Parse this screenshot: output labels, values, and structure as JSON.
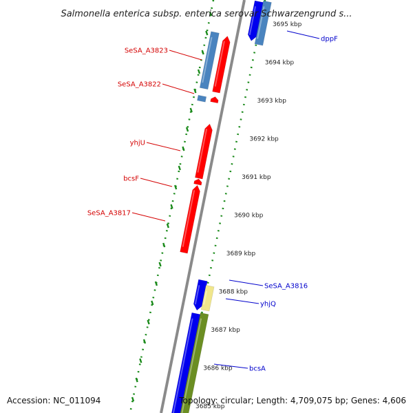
{
  "title": "Salmonella enterica subsp. enterica serovar Schwarzengrund s...",
  "footer": {
    "accession": "Accession: NC_011094",
    "topology": "Topology: circular; Length: 4,709,075 bp; Genes: 4,606"
  },
  "colors": {
    "forward_label": "#d40000",
    "reverse_label": "#0000cc",
    "backbone": "#8a8a8a",
    "dots": "#1a8a1a"
  },
  "chart_data": {
    "type": "genome-map",
    "ticks": [
      {
        "kbp": 3695,
        "label": "3695 kbp"
      },
      {
        "kbp": 3694,
        "label": "3694 kbp"
      },
      {
        "kbp": 3693,
        "label": "3693 kbp"
      },
      {
        "kbp": 3692,
        "label": "3692 kbp"
      },
      {
        "kbp": 3691,
        "label": "3691 kbp"
      },
      {
        "kbp": 3690,
        "label": "3690 kbp"
      },
      {
        "kbp": 3689,
        "label": "3689 kbp"
      },
      {
        "kbp": 3688,
        "label": "3688 kbp"
      },
      {
        "kbp": 3687,
        "label": "3687 kbp"
      },
      {
        "kbp": 3686,
        "label": "3686 kbp"
      },
      {
        "kbp": 3685,
        "label": "3685 kbp"
      }
    ],
    "labels": [
      {
        "name": "SeSA_A3823",
        "strand": "+"
      },
      {
        "name": "SeSA_A3822",
        "strand": "+"
      },
      {
        "name": "yhjU",
        "strand": "+"
      },
      {
        "name": "bcsF",
        "strand": "+"
      },
      {
        "name": "SeSA_A3817",
        "strand": "+"
      },
      {
        "name": "dppF",
        "strand": "-"
      },
      {
        "name": "SeSA_A3816",
        "strand": "-"
      },
      {
        "name": "yhjQ",
        "strand": "-"
      },
      {
        "name": "bcsA",
        "strand": "-"
      }
    ],
    "features": [
      {
        "track": "fwd_cds",
        "start_kbp": 3693.2,
        "end_kbp": 3694.7,
        "color": "#ff0000",
        "arrow": "start"
      },
      {
        "track": "fwd_cds",
        "start_kbp": 3692.95,
        "end_kbp": 3693.1,
        "color": "#ff0000",
        "arrow": "start"
      },
      {
        "track": "fwd_cds",
        "start_kbp": 3690.95,
        "end_kbp": 3692.4,
        "color": "#ff0000",
        "arrow": "start"
      },
      {
        "track": "fwd_cds",
        "start_kbp": 3690.8,
        "end_kbp": 3690.95,
        "color": "#ff0000",
        "arrow": "start"
      },
      {
        "track": "fwd_cds",
        "start_kbp": 3689.0,
        "end_kbp": 3690.8,
        "color": "#ff0000",
        "arrow": "start"
      },
      {
        "track": "fwd_gene",
        "start_kbp": 3693.3,
        "end_kbp": 3694.8,
        "color": "#4a84bf",
        "arrow": "none"
      },
      {
        "track": "fwd_gene",
        "start_kbp": 3692.98,
        "end_kbp": 3693.12,
        "color": "#4a84bf",
        "arrow": "none"
      },
      {
        "track": "rev_cds",
        "start_kbp": 3694.55,
        "end_kbp": 3695.6,
        "color": "#0000ee",
        "arrow": "end"
      },
      {
        "track": "rev_cds",
        "start_kbp": 3687.5,
        "end_kbp": 3688.3,
        "color": "#0000ee",
        "arrow": "end"
      },
      {
        "track": "rev_cds",
        "start_kbp": 3684.6,
        "end_kbp": 3687.45,
        "color": "#0000ee",
        "arrow": "end"
      },
      {
        "track": "rev_gene",
        "start_kbp": 3694.45,
        "end_kbp": 3695.6,
        "color": "#4a84bf",
        "arrow": "none"
      },
      {
        "track": "rev_gene",
        "start_kbp": 3687.5,
        "end_kbp": 3688.15,
        "color": "#f0e68c",
        "arrow": "none"
      },
      {
        "track": "rev_gene",
        "start_kbp": 3684.6,
        "end_kbp": 3687.45,
        "color": "#6b8e23",
        "arrow": "none"
      }
    ]
  }
}
